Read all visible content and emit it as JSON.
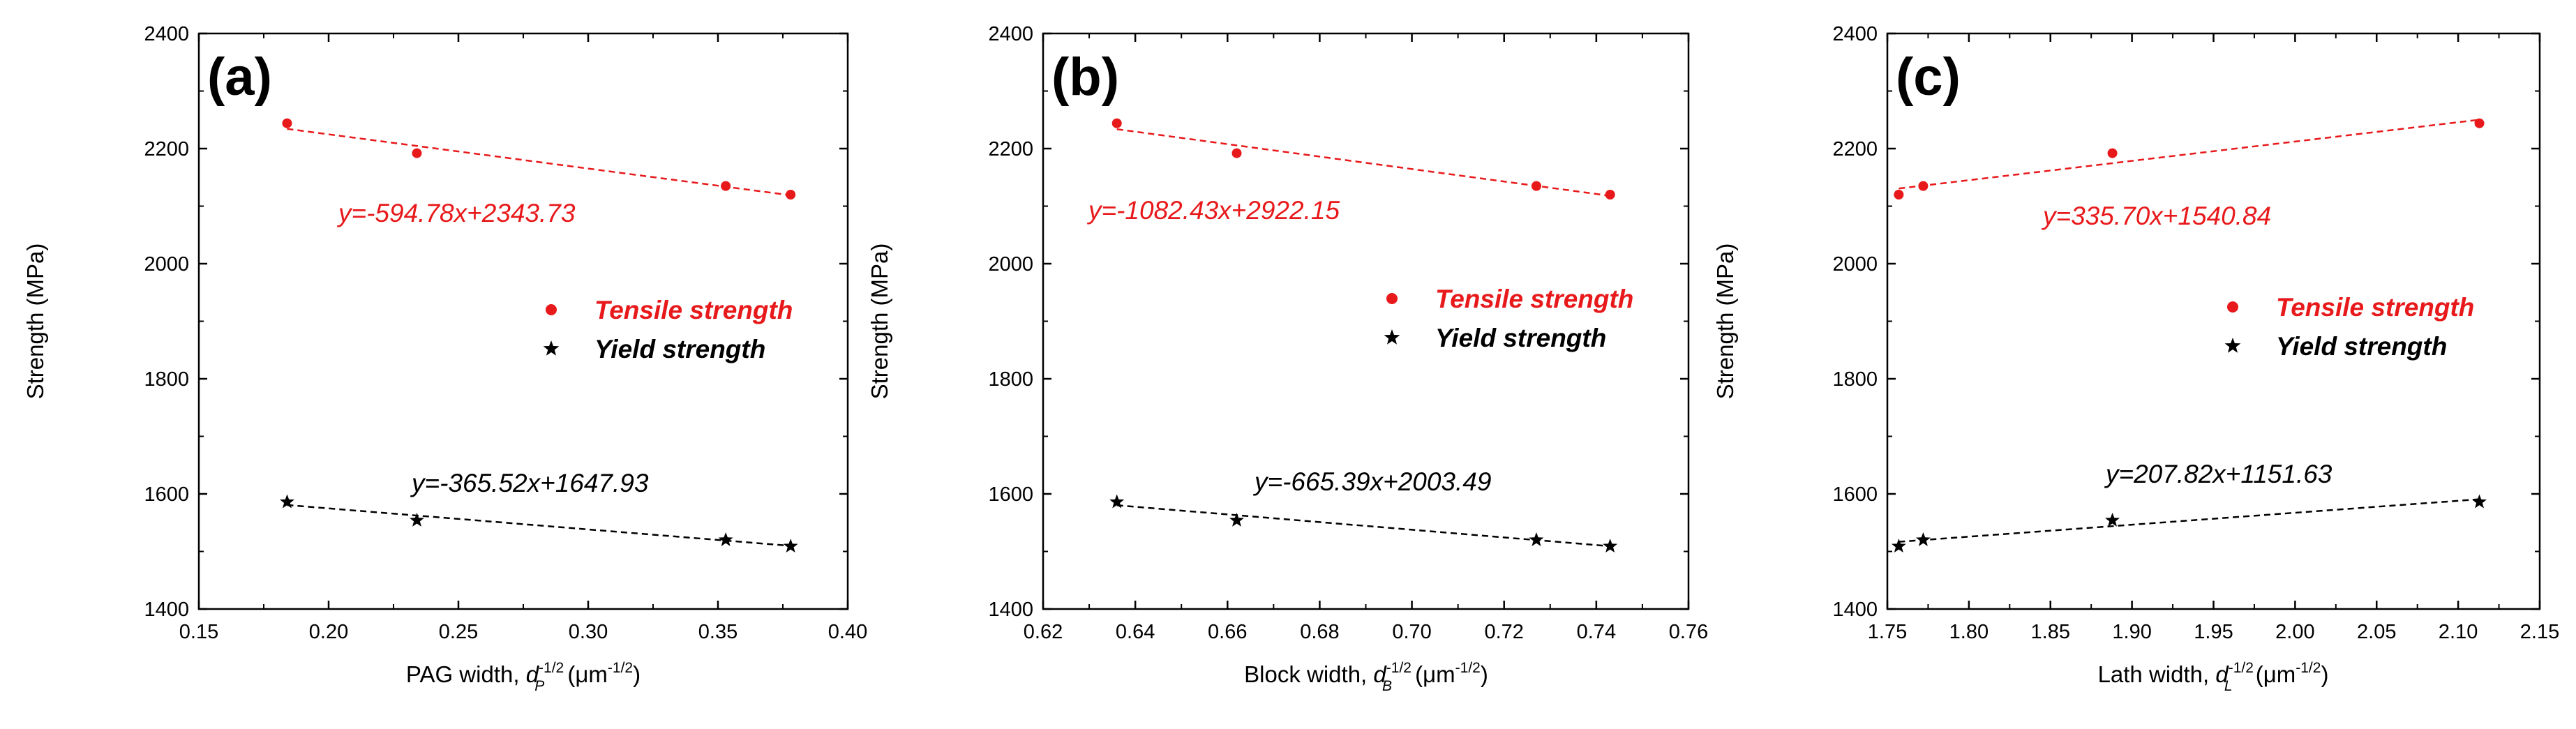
{
  "chart_data": [
    {
      "type": "scatter",
      "panel_label": "(a)",
      "xlabel": {
        "main": "PAG width, ",
        "var": "d",
        "sub": "P",
        "sup": "-1/2",
        "unit_open": " (μm",
        "unit_sup": "-1/2",
        "unit_close": ")"
      },
      "ylabel": "Strength (MPa)",
      "xlim": [
        0.15,
        0.4
      ],
      "ylim": [
        1400,
        2400
      ],
      "xticks": [
        "0.15",
        "0.20",
        "0.25",
        "0.30",
        "0.35",
        "0.40"
      ],
      "yticks": [
        "1400",
        "1600",
        "1800",
        "2000",
        "2200",
        "2400"
      ],
      "legend": [
        {
          "label": "Tensile strength",
          "marker": "circle",
          "color": "#e8191b"
        },
        {
          "label": "Yield strength",
          "marker": "star",
          "color": "#000000"
        }
      ],
      "series": [
        {
          "name": "Tensile strength",
          "color": "#e8191b",
          "marker": "circle",
          "x": [
            0.184,
            0.234,
            0.353,
            0.378
          ],
          "y": [
            2244,
            2192,
            2135,
            2120
          ],
          "fit": {
            "equation": "y=-594.78x+2343.73",
            "slope": -594.78,
            "intercept": 2343.73
          }
        },
        {
          "name": "Yield strength",
          "color": "#000000",
          "marker": "star",
          "x": [
            0.184,
            0.234,
            0.353,
            0.378
          ],
          "y": [
            1586,
            1554,
            1520,
            1509
          ],
          "fit": {
            "equation": "y=-365.52x+1647.93",
            "slope": -365.52,
            "intercept": 1647.93
          }
        }
      ]
    },
    {
      "type": "scatter",
      "panel_label": "(b)",
      "xlabel": {
        "main": "Block width, ",
        "var": "d",
        "sub": "B",
        "sup": "-1/2",
        "unit_open": " (μm",
        "unit_sup": "-1/2",
        "unit_close": ")"
      },
      "ylabel": "Strength (MPa)",
      "xlim": [
        0.62,
        0.76
      ],
      "ylim": [
        1400,
        2400
      ],
      "xticks": [
        "0.62",
        "0.64",
        "0.66",
        "0.68",
        "0.70",
        "0.72",
        "0.74",
        "0.76"
      ],
      "yticks": [
        "1400",
        "1600",
        "1800",
        "2000",
        "2200",
        "2400"
      ],
      "legend": [
        {
          "label": "Tensile strength",
          "marker": "circle",
          "color": "#e8191b"
        },
        {
          "label": "Yield strength",
          "marker": "star",
          "color": "#000000"
        }
      ],
      "series": [
        {
          "name": "Tensile strength",
          "color": "#e8191b",
          "marker": "circle",
          "x": [
            0.636,
            0.662,
            0.727,
            0.743
          ],
          "y": [
            2244,
            2192,
            2135,
            2120
          ],
          "fit": {
            "equation": "y=-1082.43x+2922.15",
            "slope": -1082.43,
            "intercept": 2922.15
          }
        },
        {
          "name": "Yield strength",
          "color": "#000000",
          "marker": "star",
          "x": [
            0.636,
            0.662,
            0.727,
            0.743
          ],
          "y": [
            1586,
            1554,
            1520,
            1509
          ],
          "fit": {
            "equation": "y=-665.39x+2003.49",
            "slope": -665.39,
            "intercept": 2003.49
          }
        }
      ]
    },
    {
      "type": "scatter",
      "panel_label": "(c)",
      "xlabel": {
        "main": "Lath width, ",
        "var": "d",
        "sub": "L",
        "sup": "-1/2",
        "unit_open": " (μm",
        "unit_sup": "-1/2",
        "unit_close": ")"
      },
      "ylabel": "Strength (MPa)",
      "xlim": [
        1.75,
        2.15
      ],
      "ylim": [
        1400,
        2400
      ],
      "xticks": [
        "1.75",
        "1.80",
        "1.85",
        "1.90",
        "1.95",
        "2.00",
        "2.05",
        "2.10",
        "2.15"
      ],
      "yticks": [
        "1400",
        "1600",
        "1800",
        "2000",
        "2200",
        "2400"
      ],
      "legend": [
        {
          "label": "Tensile strength",
          "marker": "circle",
          "color": "#e8191b"
        },
        {
          "label": "Yield strength",
          "marker": "star",
          "color": "#000000"
        }
      ],
      "series": [
        {
          "name": "Tensile strength",
          "color": "#e8191b",
          "marker": "circle",
          "x": [
            1.757,
            1.772,
            1.888,
            2.113
          ],
          "y": [
            2120,
            2135,
            2192,
            2244
          ],
          "fit": {
            "equation": "y=335.70x+1540.84",
            "slope": 335.7,
            "intercept": 1540.84
          }
        },
        {
          "name": "Yield strength",
          "color": "#000000",
          "marker": "star",
          "x": [
            1.757,
            1.772,
            1.888,
            2.113
          ],
          "y": [
            1509,
            1520,
            1554,
            1586
          ],
          "fit": {
            "equation": "y=207.82x+1151.63",
            "slope": 207.82,
            "intercept": 1151.63
          }
        }
      ]
    }
  ]
}
